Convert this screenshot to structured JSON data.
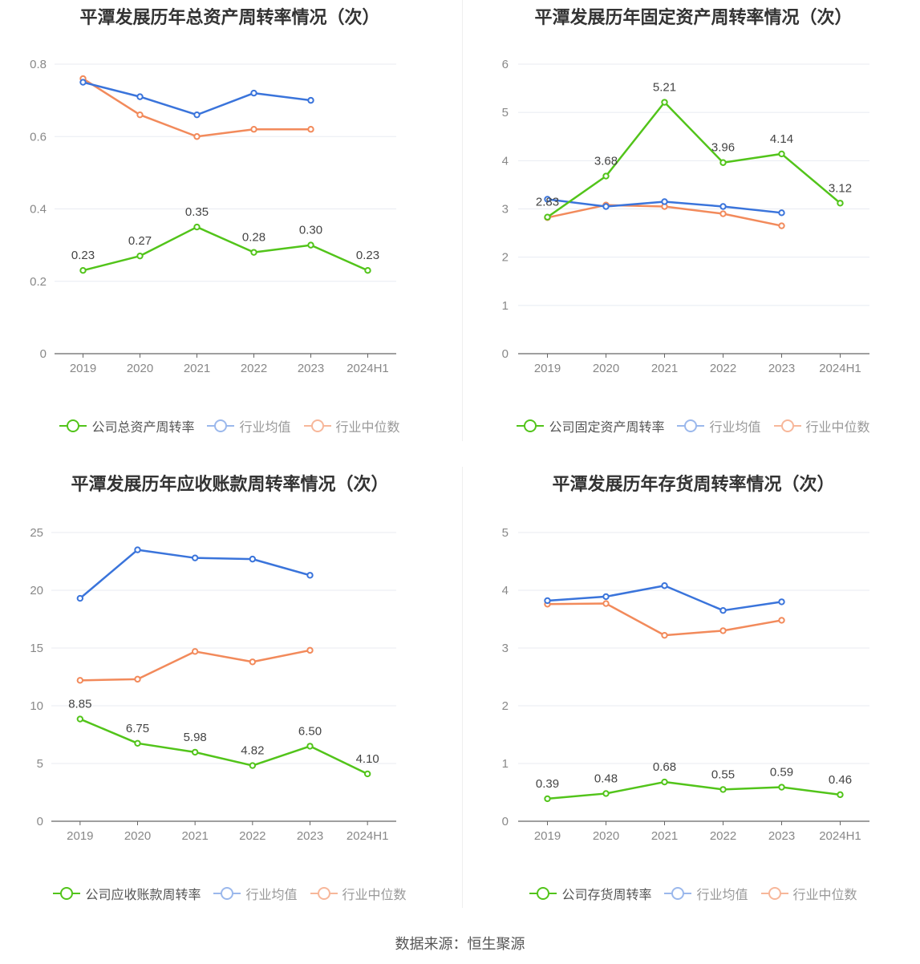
{
  "source": "数据来源：恒生聚源",
  "colors": {
    "company": "#52c41a",
    "industry_avg": "#3a74db",
    "industry_median": "#f28a5b",
    "axis": "#888888",
    "grid": "#e8ebf2"
  },
  "legend_icon": "circle-line-icon",
  "chart_data": [
    {
      "type": "line",
      "title": "平潭发展历年总资产周转率情况（次）",
      "categories": [
        "2019",
        "2020",
        "2021",
        "2022",
        "2023",
        "2024H1"
      ],
      "ylim": [
        0,
        0.8
      ],
      "yticks": [
        0,
        0.2,
        0.4,
        0.6,
        0.8
      ],
      "ytick_labels": [
        "0",
        "0.2",
        "0.4",
        "0.6",
        "0.8"
      ],
      "series": [
        {
          "name": "公司总资产周转率",
          "role": "company",
          "values": [
            0.23,
            0.27,
            0.35,
            0.28,
            0.3,
            0.23
          ],
          "labels": [
            "0.23",
            "0.27",
            "0.35",
            "0.28",
            "0.30",
            "0.23"
          ]
        },
        {
          "name": "行业均值",
          "role": "industry_avg",
          "values": [
            0.75,
            0.71,
            0.66,
            0.72,
            0.7,
            null
          ]
        },
        {
          "name": "行业中位数",
          "role": "industry_median",
          "values": [
            0.76,
            0.66,
            0.6,
            0.62,
            0.62,
            null
          ]
        }
      ]
    },
    {
      "type": "line",
      "title": "平潭发展历年固定资产周转率情况（次）",
      "categories": [
        "2019",
        "2020",
        "2021",
        "2022",
        "2023",
        "2024H1"
      ],
      "ylim": [
        0,
        6
      ],
      "yticks": [
        0,
        1,
        2,
        3,
        4,
        5,
        6
      ],
      "ytick_labels": [
        "0",
        "1",
        "2",
        "3",
        "4",
        "5",
        "6"
      ],
      "series": [
        {
          "name": "公司固定资产周转率",
          "role": "company",
          "values": [
            2.83,
            3.68,
            5.21,
            3.96,
            4.14,
            3.12
          ],
          "labels": [
            "2.83",
            "3.68",
            "5.21",
            "3.96",
            "4.14",
            "3.12"
          ]
        },
        {
          "name": "行业均值",
          "role": "industry_avg",
          "values": [
            3.2,
            3.05,
            3.15,
            3.05,
            2.92,
            null
          ]
        },
        {
          "name": "行业中位数",
          "role": "industry_median",
          "values": [
            2.82,
            3.08,
            3.05,
            2.9,
            2.65,
            null
          ]
        }
      ]
    },
    {
      "type": "line",
      "title": "平潭发展历年应收账款周转率情况（次）",
      "categories": [
        "2019",
        "2020",
        "2021",
        "2022",
        "2023",
        "2024H1"
      ],
      "ylim": [
        0,
        25
      ],
      "yticks": [
        0,
        5,
        10,
        15,
        20,
        25
      ],
      "ytick_labels": [
        "0",
        "5",
        "10",
        "15",
        "20",
        "25"
      ],
      "series": [
        {
          "name": "公司应收账款周转率",
          "role": "company",
          "values": [
            8.85,
            6.75,
            5.98,
            4.82,
            6.5,
            4.1
          ],
          "labels": [
            "8.85",
            "6.75",
            "5.98",
            "4.82",
            "6.50",
            "4.10"
          ]
        },
        {
          "name": "行业均值",
          "role": "industry_avg",
          "values": [
            19.3,
            23.5,
            22.8,
            22.7,
            21.3,
            null
          ]
        },
        {
          "name": "行业中位数",
          "role": "industry_median",
          "values": [
            12.2,
            12.3,
            14.7,
            13.8,
            14.8,
            null
          ]
        }
      ]
    },
    {
      "type": "line",
      "title": "平潭发展历年存货周转率情况（次）",
      "categories": [
        "2019",
        "2020",
        "2021",
        "2022",
        "2023",
        "2024H1"
      ],
      "ylim": [
        0,
        5
      ],
      "yticks": [
        0,
        1,
        2,
        3,
        4,
        5
      ],
      "ytick_labels": [
        "0",
        "1",
        "2",
        "3",
        "4",
        "5"
      ],
      "series": [
        {
          "name": "公司存货周转率",
          "role": "company",
          "values": [
            0.39,
            0.48,
            0.68,
            0.55,
            0.59,
            0.46
          ],
          "labels": [
            "0.39",
            "0.48",
            "0.68",
            "0.55",
            "0.59",
            "0.46"
          ]
        },
        {
          "name": "行业均值",
          "role": "industry_avg",
          "values": [
            3.82,
            3.89,
            4.08,
            3.65,
            3.8,
            null
          ]
        },
        {
          "name": "行业中位数",
          "role": "industry_median",
          "values": [
            3.76,
            3.77,
            3.22,
            3.3,
            3.48,
            null
          ]
        }
      ]
    }
  ]
}
